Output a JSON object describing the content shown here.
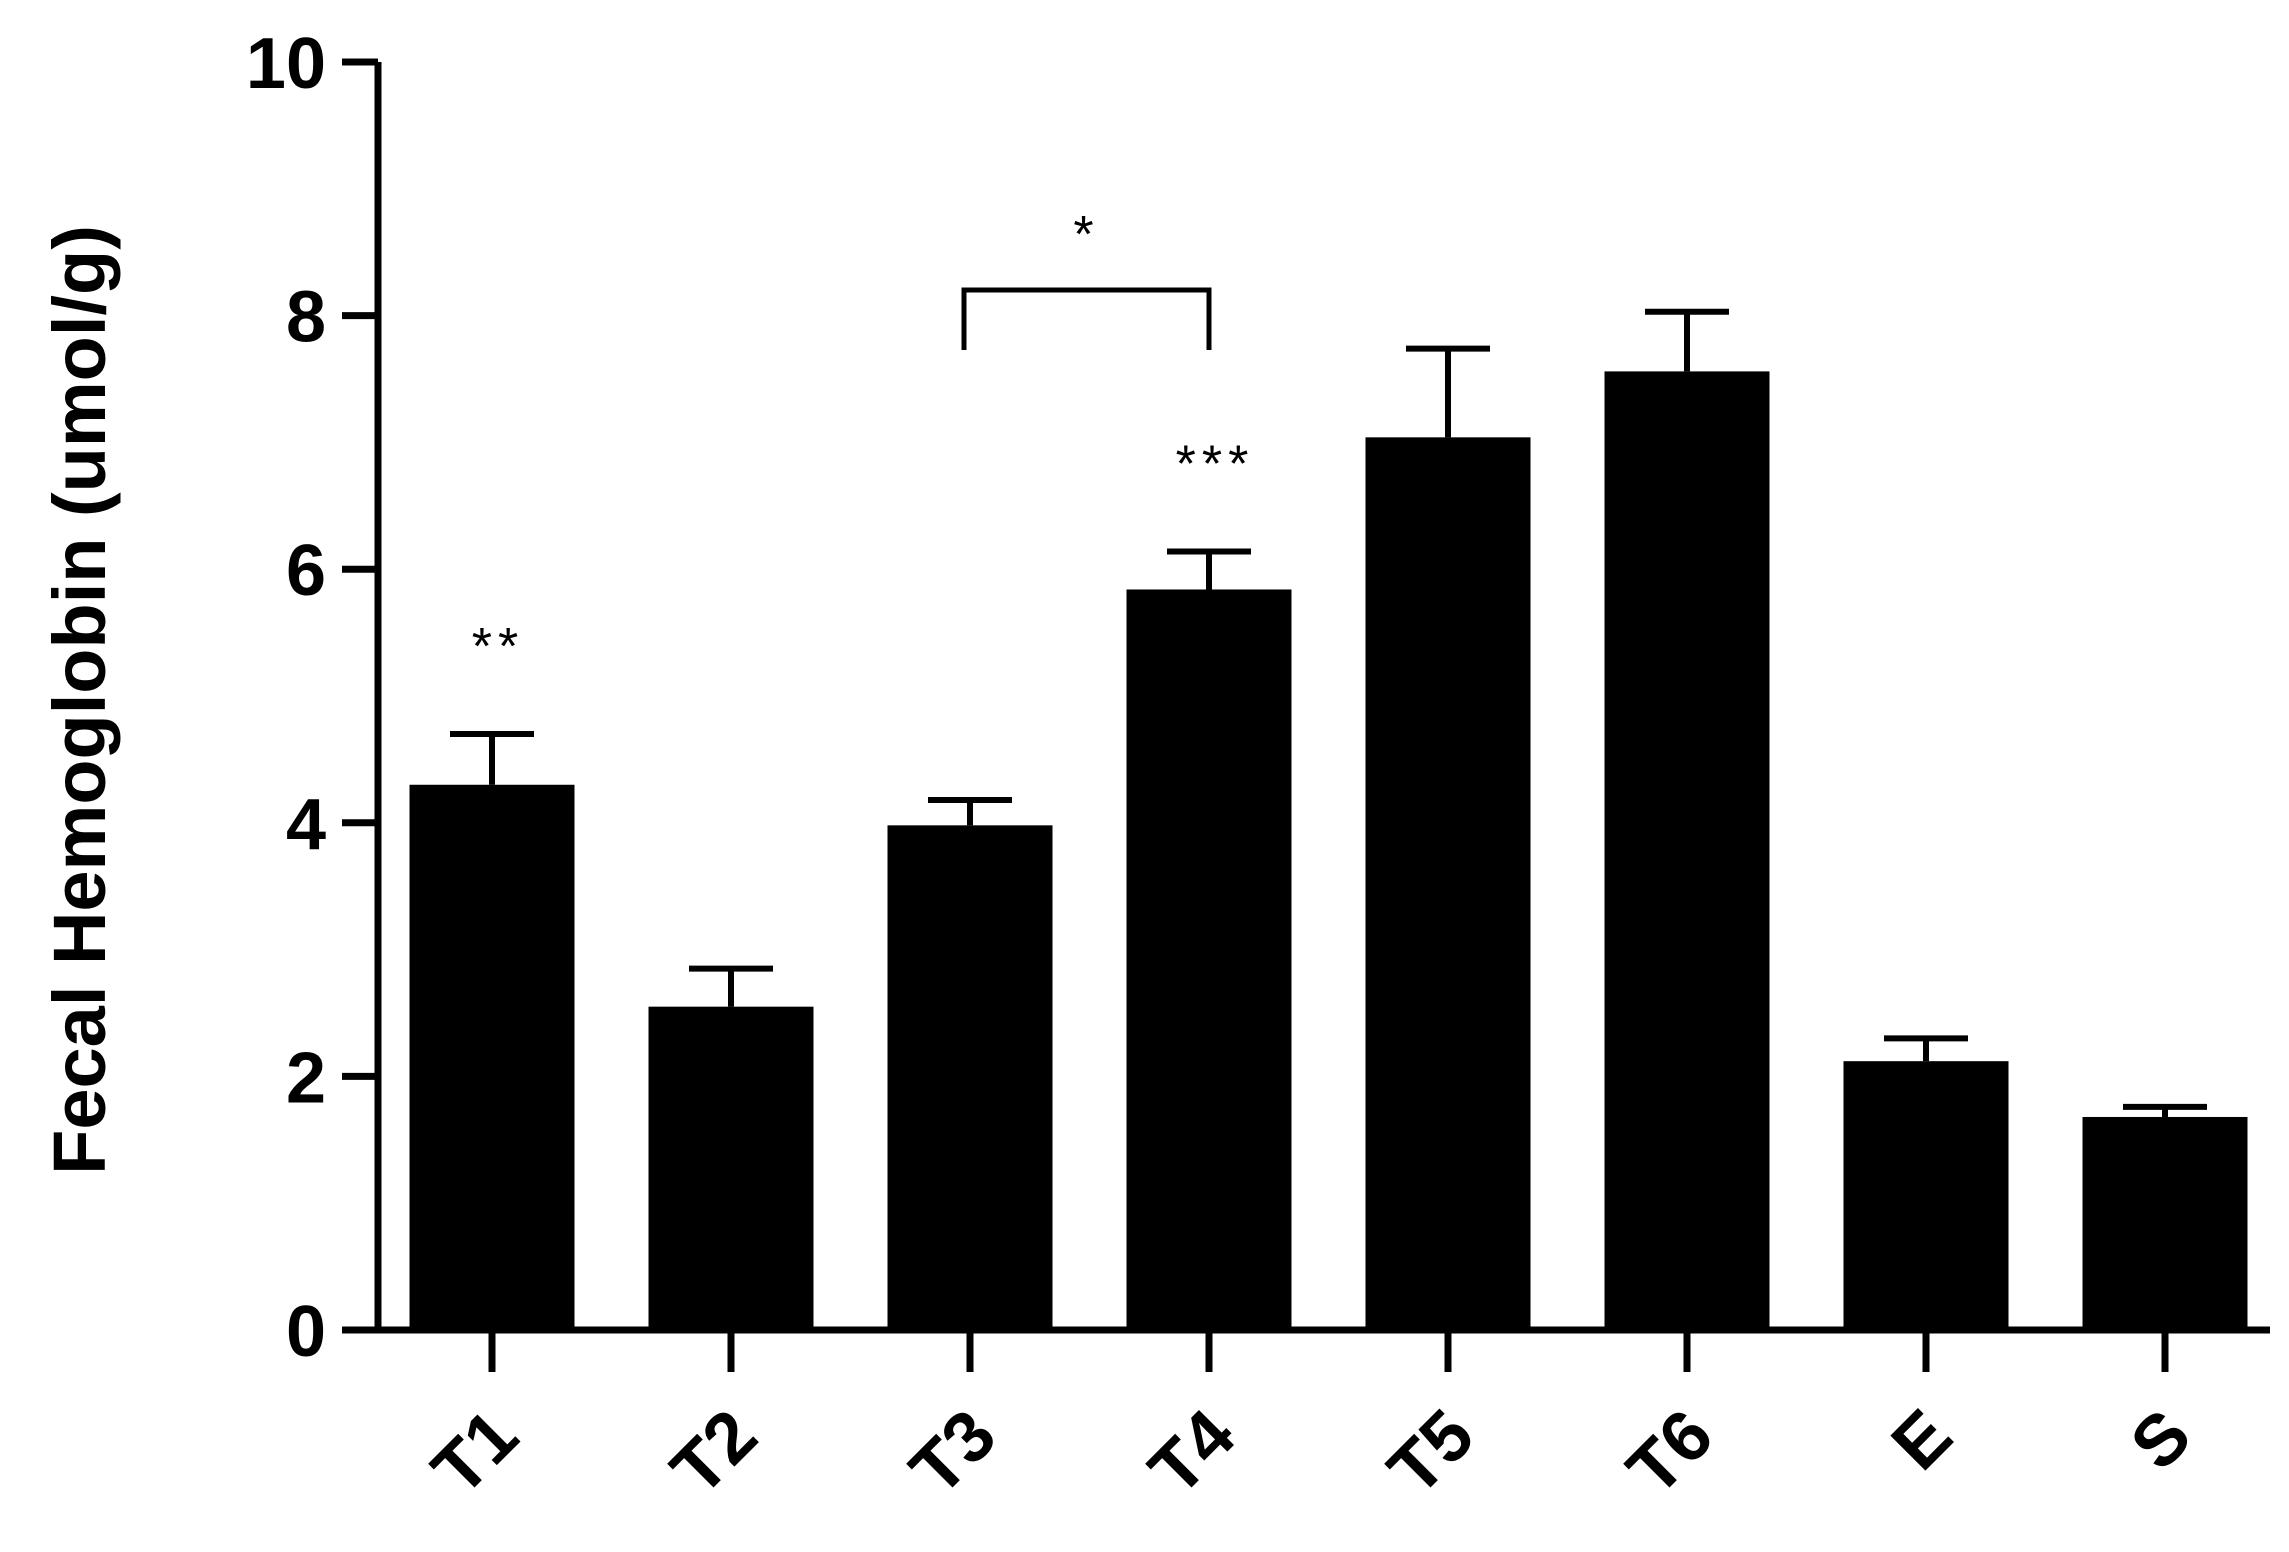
{
  "chart_data": {
    "type": "bar",
    "ylabel": "Fecal Hemoglobin (umol/g)",
    "xlabel": "",
    "categories": [
      "T1",
      "T2",
      "T3",
      "T4",
      "T5",
      "T6",
      "E",
      "S"
    ],
    "values": [
      4.3,
      2.55,
      3.98,
      5.84,
      7.04,
      7.56,
      2.12,
      1.68
    ],
    "errors": [
      0.4,
      0.3,
      0.2,
      0.3,
      0.7,
      0.47,
      0.18,
      0.08
    ],
    "ylim": [
      0,
      10
    ],
    "yticks": [
      "0",
      "2",
      "4",
      "6",
      "8",
      "10"
    ],
    "ytick_values": [
      0,
      2,
      4,
      6,
      8,
      10
    ],
    "significance": [
      {
        "category": "T1",
        "label": "**"
      },
      {
        "category": "T4",
        "label": "***"
      }
    ],
    "comparison": {
      "from": "T3",
      "to": "T4",
      "label": "*"
    },
    "bar_color": "#000000",
    "grid": false,
    "legend": "none"
  }
}
